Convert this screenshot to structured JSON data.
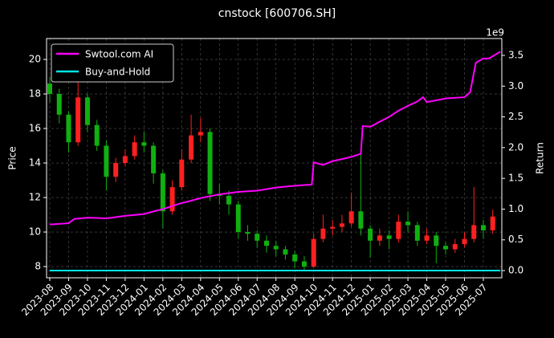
{
  "chart_data": {
    "type": "candlestick",
    "title": "cnstock [600706.SH]",
    "ylabel": "Price",
    "y2label": "Return",
    "y2_offset_label": "1e9",
    "grid": true,
    "legend": "upper left",
    "up_color": "#ff2020",
    "down_color": "#10b010",
    "xlim": [
      -0.17,
      23.98
    ],
    "xticks": [
      {
        "value": 0,
        "label": "2023-08"
      },
      {
        "value": 1,
        "label": "2023-09"
      },
      {
        "value": 2,
        "label": "2023-10"
      },
      {
        "value": 3,
        "label": "2023-11"
      },
      {
        "value": 4,
        "label": "2023-12"
      },
      {
        "value": 5,
        "label": "2024-01"
      },
      {
        "value": 6,
        "label": "2024-02"
      },
      {
        "value": 7,
        "label": "2024-03"
      },
      {
        "value": 8,
        "label": "2024-04"
      },
      {
        "value": 9,
        "label": "2024-05"
      },
      {
        "value": 10,
        "label": "2024-06"
      },
      {
        "value": 11,
        "label": "2024-07"
      },
      {
        "value": 12,
        "label": "2024-08"
      },
      {
        "value": 13,
        "label": "2024-09"
      },
      {
        "value": 14,
        "label": "2024-10"
      },
      {
        "value": 15,
        "label": "2024-11"
      },
      {
        "value": 16,
        "label": "2024-12"
      },
      {
        "value": 17,
        "label": "2025-01"
      },
      {
        "value": 18,
        "label": "2025-02"
      },
      {
        "value": 19,
        "label": "2025-03"
      },
      {
        "value": 20,
        "label": "2025-04"
      },
      {
        "value": 21,
        "label": "2025-05"
      },
      {
        "value": 22,
        "label": "2025-06"
      },
      {
        "value": 23,
        "label": "2025-07"
      }
    ],
    "ylim": [
      7.35,
      21.21
    ],
    "yticks": [
      8,
      10,
      12,
      14,
      16,
      18,
      20
    ],
    "y2lim": [
      -0.117,
      3.774
    ],
    "y2ticks": [
      {
        "value": 0,
        "label": "0.0"
      },
      0.5,
      {
        "value": 1,
        "label": "1.0"
      },
      1.5,
      {
        "value": 2,
        "label": "2.0"
      },
      2.5,
      {
        "value": 3,
        "label": "3.0"
      },
      3.5
    ],
    "candles": {
      "x": [
        0,
        0.5,
        1,
        1.5,
        2,
        2.5,
        3,
        3.5,
        4,
        4.5,
        5,
        5.5,
        6,
        6.5,
        7,
        7.5,
        8,
        8.5,
        9,
        9.5,
        10,
        10.5,
        11,
        11.5,
        12,
        12.5,
        13,
        13.5,
        14,
        14.5,
        15,
        15.5,
        16,
        16.5,
        17,
        17.5,
        18,
        18.5,
        19,
        19.5,
        20,
        20.5,
        21,
        21.5,
        22,
        22.5,
        23,
        23.5
      ],
      "open": [
        18.6,
        18.0,
        16.8,
        15.2,
        17.8,
        16.2,
        15.0,
        13.2,
        14.0,
        14.4,
        15.2,
        15.0,
        13.4,
        11.2,
        12.6,
        14.2,
        15.6,
        15.8,
        12.2,
        12.1,
        11.6,
        10.0,
        9.9,
        9.5,
        9.2,
        9.0,
        8.7,
        8.3,
        8.0,
        9.6,
        10.2,
        10.3,
        10.5,
        11.2,
        10.2,
        9.5,
        9.8,
        9.6,
        10.6,
        10.4,
        9.5,
        9.8,
        9.2,
        9.0,
        9.3,
        9.6,
        10.4,
        10.1
      ],
      "high": [
        19.0,
        18.3,
        17.0,
        19.6,
        18.0,
        16.5,
        15.3,
        14.3,
        14.8,
        15.6,
        15.8,
        15.2,
        13.6,
        13.0,
        14.8,
        16.8,
        16.6,
        16.0,
        12.8,
        12.4,
        11.8,
        10.4,
        10.1,
        9.8,
        9.5,
        9.2,
        8.9,
        8.6,
        9.9,
        11.0,
        10.7,
        11.0,
        12.3,
        14.5,
        10.4,
        10.2,
        10.1,
        11.0,
        11.2,
        10.6,
        10.2,
        10.0,
        9.4,
        9.6,
        10.0,
        12.6,
        10.7,
        11.3
      ],
      "low": [
        17.5,
        16.3,
        14.6,
        15.0,
        15.8,
        14.7,
        12.4,
        12.9,
        13.8,
        14.2,
        14.6,
        12.8,
        10.2,
        11.0,
        12.4,
        14.0,
        15.2,
        11.8,
        11.6,
        11.0,
        9.6,
        9.5,
        9.1,
        8.8,
        8.6,
        8.4,
        7.9,
        7.8,
        7.9,
        9.4,
        9.8,
        10.0,
        10.3,
        9.8,
        8.5,
        9.2,
        9.0,
        9.4,
        10.0,
        9.2,
        9.3,
        8.2,
        8.7,
        8.8,
        9.1,
        9.4,
        9.6,
        9.9
      ],
      "close": [
        18.0,
        16.8,
        15.2,
        17.8,
        16.2,
        15.0,
        13.2,
        14.0,
        14.4,
        15.2,
        15.0,
        13.4,
        11.2,
        12.6,
        14.2,
        15.6,
        15.8,
        12.2,
        12.1,
        11.6,
        10.0,
        9.9,
        9.5,
        9.2,
        9.0,
        8.7,
        8.3,
        8.0,
        9.6,
        10.2,
        10.3,
        10.5,
        11.2,
        10.2,
        9.5,
        9.8,
        9.6,
        10.6,
        10.4,
        9.5,
        9.8,
        9.2,
        9.0,
        9.3,
        9.6,
        10.4,
        10.1,
        10.9
      ]
    },
    "series": [
      {
        "name": "Swtool.com AI",
        "color": "#ff00ff",
        "axis": "y2",
        "x": [
          0,
          1,
          1.3,
          2,
          3,
          4,
          5,
          5.6,
          6,
          7,
          7.3,
          8,
          9,
          10,
          11,
          12,
          13,
          13.9,
          14.0,
          14.5,
          15,
          15.6,
          16,
          16.5,
          16.6,
          17,
          17.5,
          18,
          18.5,
          19,
          19.5,
          19.8,
          20,
          21,
          22,
          22.3,
          22.6,
          23,
          23.3,
          23.9
        ],
        "values": [
          0.75,
          0.77,
          0.84,
          0.86,
          0.85,
          0.89,
          0.92,
          0.97,
          1.0,
          1.1,
          1.12,
          1.18,
          1.24,
          1.28,
          1.3,
          1.35,
          1.38,
          1.4,
          1.76,
          1.72,
          1.78,
          1.82,
          1.85,
          1.9,
          2.35,
          2.34,
          2.42,
          2.5,
          2.6,
          2.68,
          2.75,
          2.82,
          2.74,
          2.8,
          2.82,
          2.9,
          3.38,
          3.45,
          3.45,
          3.56
        ]
      },
      {
        "name": "Buy-and-Hold",
        "color": "#00e5e5",
        "axis": "y2",
        "x": [
          0,
          23.9
        ],
        "values": [
          0.0,
          0.0
        ]
      }
    ]
  }
}
